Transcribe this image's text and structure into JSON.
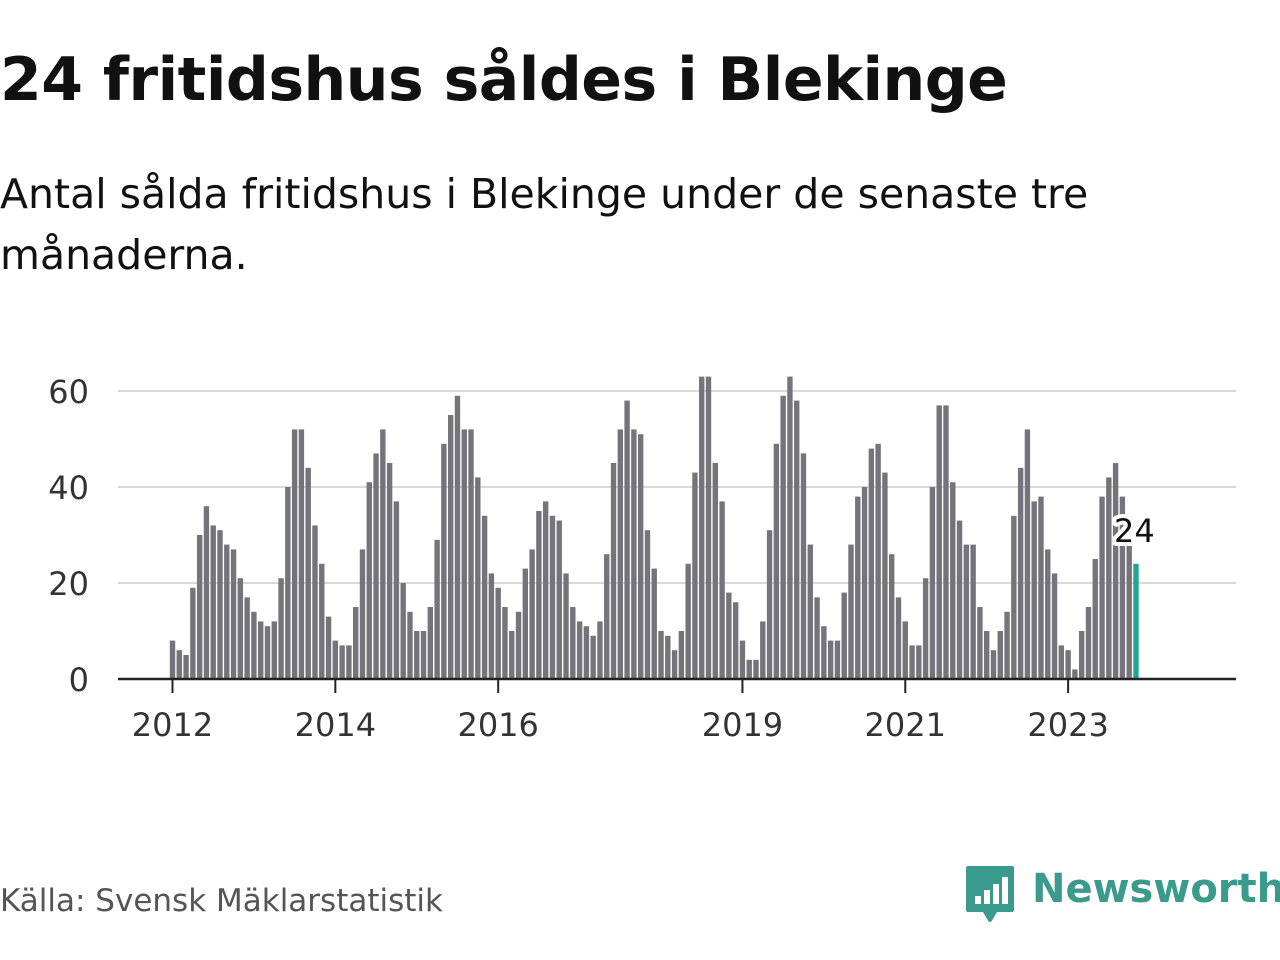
{
  "title": "24 fritidshus såldes i Blekinge",
  "subtitle": "Antal sålda fritidshus i Blekinge under de senaste tre månaderna.",
  "source": "Källa: Svensk Mäklarstatistik",
  "brand": {
    "name": "Newsworthy",
    "color": "#3a9a8c"
  },
  "colors": {
    "bar": "#75747a",
    "highlight": "#1ea595",
    "grid": "#d9d9d9",
    "axis": "#222222"
  },
  "chart_data": {
    "type": "bar",
    "title": "24 fritidshus såldes i Blekinge",
    "subtitle": "Antal sålda fritidshus i Blekinge under de senaste tre månaderna.",
    "x_unit": "month",
    "start": "2012-01",
    "values": [
      8,
      6,
      5,
      19,
      30,
      36,
      32,
      31,
      28,
      27,
      21,
      17,
      14,
      12,
      11,
      12,
      21,
      40,
      52,
      52,
      44,
      32,
      24,
      13,
      8,
      7,
      7,
      15,
      27,
      41,
      47,
      52,
      45,
      37,
      20,
      14,
      10,
      10,
      15,
      29,
      49,
      55,
      59,
      52,
      52,
      42,
      34,
      22,
      19,
      15,
      10,
      14,
      23,
      27,
      35,
      37,
      34,
      33,
      22,
      15,
      12,
      11,
      9,
      12,
      26,
      45,
      52,
      58,
      52,
      51,
      31,
      23,
      10,
      9,
      6,
      10,
      24,
      43,
      63,
      63,
      45,
      37,
      18,
      16,
      8,
      4,
      4,
      12,
      31,
      49,
      59,
      63,
      58,
      47,
      28,
      17,
      11,
      8,
      8,
      18,
      28,
      38,
      40,
      48,
      49,
      43,
      26,
      17,
      12,
      7,
      7,
      21,
      40,
      57,
      57,
      41,
      33,
      28,
      28,
      15,
      10,
      6,
      10,
      14,
      34,
      44,
      52,
      37,
      38,
      27,
      22,
      7,
      6,
      2,
      10,
      15,
      25,
      38,
      42,
      45,
      38,
      28,
      24
    ],
    "highlight": {
      "label": "24",
      "value": 24,
      "period": "latest"
    },
    "x_ticks": [
      "2012",
      "2014",
      "2016",
      "2019",
      "2021",
      "2023"
    ],
    "y_ticks": [
      0,
      20,
      40,
      60
    ],
    "ylim": [
      0,
      64
    ],
    "grid": true
  }
}
